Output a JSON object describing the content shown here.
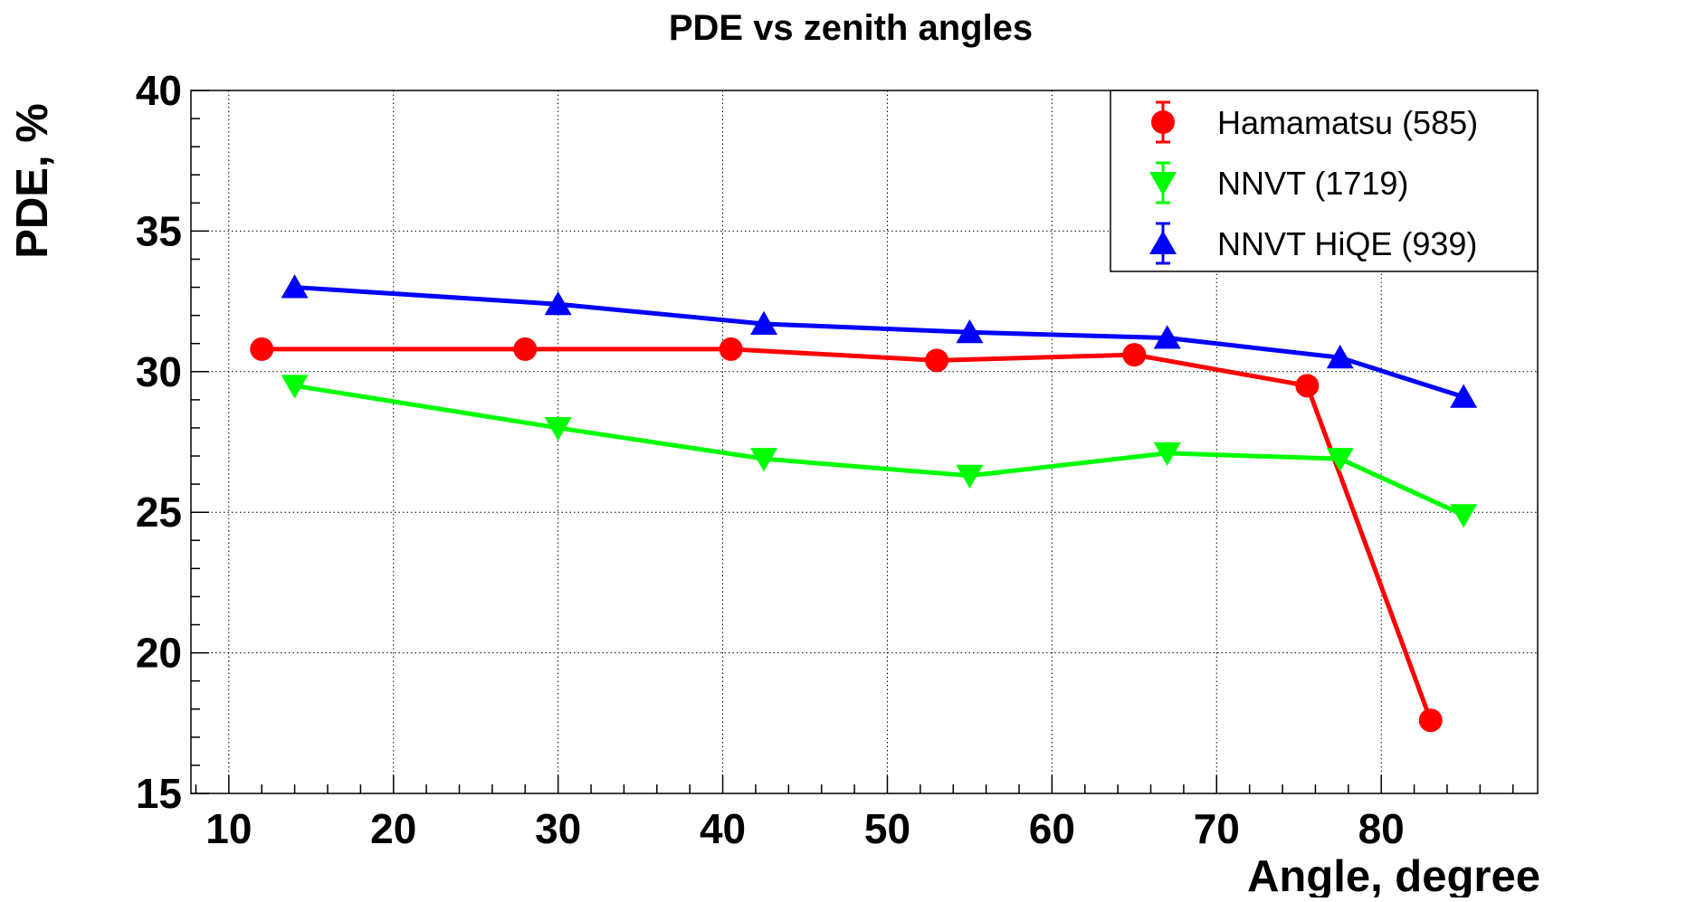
{
  "chart_data": {
    "type": "line",
    "title": "PDE vs zenith angles",
    "xlabel": "Angle, degree",
    "ylabel": "PDE, %",
    "xlim": [
      7.7,
      89.5
    ],
    "ylim": [
      15,
      40
    ],
    "xticks": [
      10,
      20,
      30,
      40,
      50,
      60,
      70,
      80
    ],
    "xtick_labels": [
      "10",
      "20",
      "30",
      "40",
      "50",
      "60",
      "70",
      "80"
    ],
    "yticks": [
      15,
      20,
      25,
      30,
      35,
      40
    ],
    "ytick_labels": [
      "15",
      "20",
      "25",
      "30",
      "35",
      "40"
    ],
    "grid": true,
    "legend_position": "top-right",
    "series": [
      {
        "name": "Hamamatsu (585)",
        "color": "#ff0000",
        "marker": "circle",
        "x": [
          12,
          28,
          40.5,
          53,
          65,
          75.5,
          83
        ],
        "y": [
          30.8,
          30.8,
          30.8,
          30.4,
          30.6,
          29.5,
          17.6
        ]
      },
      {
        "name": "NNVT (1719)",
        "color": "#00ff00",
        "marker": "triangle-down",
        "x": [
          14,
          30,
          42.5,
          55,
          67,
          77.5,
          85
        ],
        "y": [
          29.5,
          28.0,
          26.9,
          26.3,
          27.1,
          26.9,
          24.9
        ]
      },
      {
        "name": "NNVT HiQE (939)",
        "color": "#0000ff",
        "marker": "triangle-up",
        "x": [
          14,
          30,
          42.5,
          55,
          67,
          77.5,
          85
        ],
        "y": [
          33.0,
          32.4,
          31.7,
          31.4,
          31.2,
          30.5,
          29.1
        ]
      }
    ]
  }
}
